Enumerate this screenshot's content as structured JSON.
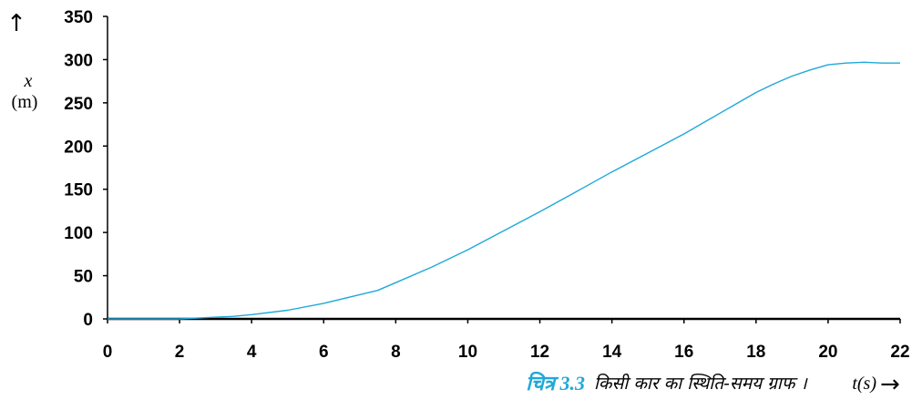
{
  "chart_data": {
    "type": "line",
    "xlabel": "t(s)",
    "ylabel_var": "x",
    "ylabel_unit": "(m)",
    "xlim": [
      0,
      22
    ],
    "ylim": [
      0,
      350
    ],
    "x_ticks": [
      0,
      2,
      4,
      6,
      8,
      10,
      12,
      14,
      16,
      18,
      20,
      22
    ],
    "y_ticks": [
      0,
      50,
      100,
      150,
      200,
      250,
      300,
      350
    ],
    "grid": false,
    "series": [
      {
        "color": "#1fa8d8",
        "x": [
          0,
          1,
          2,
          2.5,
          3,
          3.5,
          4,
          5,
          6,
          7,
          7.5,
          8,
          9,
          10,
          11,
          12,
          13,
          14,
          15,
          16,
          17,
          17.5,
          18,
          18.5,
          19,
          19.5,
          20,
          20.5,
          21,
          21.5,
          22
        ],
        "y": [
          0,
          0,
          0,
          1,
          2,
          3,
          5,
          10,
          18,
          28,
          33,
          42,
          60,
          80,
          102,
          124,
          147,
          170,
          192,
          214,
          238,
          250,
          262,
          272,
          281,
          288,
          294,
          296,
          297,
          296,
          296
        ]
      }
    ],
    "caption_label": "चित्र 3.3",
    "caption_text": "किसी कार का स्थिति-समय ग्राफ ।"
  }
}
